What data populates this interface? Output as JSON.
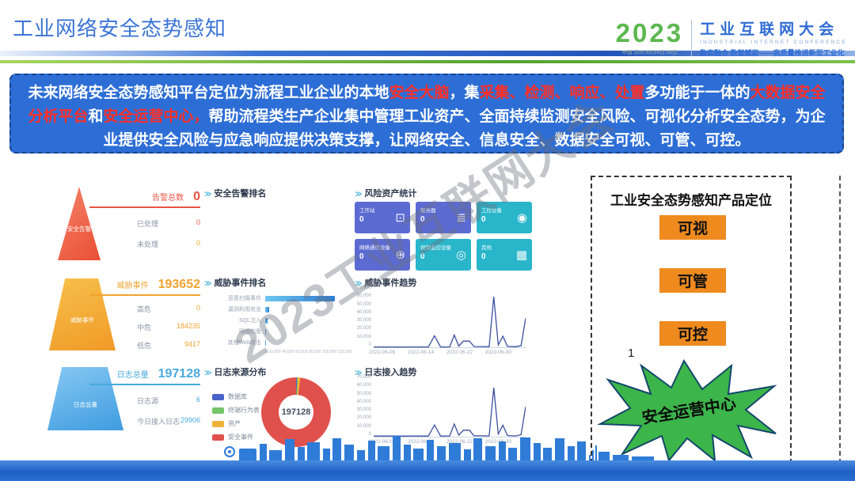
{
  "header": {
    "title": "工业网络安全态势感知",
    "logo": {
      "year": "2023",
      "venue": "中国·苏州 8月14日-16日",
      "name": "工业互联网大会",
      "name_en": "INDUSTRIAL INTERNET CONFERENCE",
      "slogan": "数实融合 数智赋能——高质量推进新型工业化"
    }
  },
  "banner": {
    "segments": [
      {
        "t": "未来网络安全态势感知平台定位为流程工业企业的本地",
        "red": false
      },
      {
        "t": "安全大脑",
        "red": true
      },
      {
        "t": "，集",
        "red": false
      },
      {
        "t": "采集、检测、响应、处置",
        "red": true
      },
      {
        "t": "多功能于一体的",
        "red": false
      },
      {
        "t": "大数据安全分析平台",
        "red": true
      },
      {
        "t": "和",
        "red": false
      },
      {
        "t": "安全运营中心，",
        "red": true
      },
      {
        "t": "帮助流程类生产企业集中管理工业资产、全面持续监测安全风险、可视化分析安全态势，为企业提供安全风险与应急响应提供决策支撑，让网络安全、信息安全、数据安全可视、可管、可控。",
        "red": false
      }
    ]
  },
  "watermark": "2023工业互联网大会",
  "dashboard": {
    "section_marker": "≫",
    "alerts": {
      "pyramid_label": "安全告警",
      "title": "告警总数",
      "total": "0",
      "rows": [
        {
          "label": "已处理",
          "value": "0"
        },
        {
          "label": "未处理",
          "value": "0"
        }
      ]
    },
    "threats": {
      "pyramid_label": "威胁事件",
      "title": "威胁事件",
      "total": "193652",
      "rows": [
        {
          "label": "高危",
          "value": "0"
        },
        {
          "label": "中危",
          "value": "184235"
        },
        {
          "label": "低危",
          "value": "9417"
        }
      ]
    },
    "logs": {
      "pyramid_label": "日志总量",
      "title": "日志总量",
      "total": "197128",
      "rows": [
        {
          "label": "日志源",
          "value": "6"
        },
        {
          "label": "今日接入日志",
          "value": "29906"
        }
      ]
    },
    "sections": {
      "alert_rank": "安全告警排名",
      "threat_rank": "威胁事件排名",
      "log_source": "日志来源分布",
      "risk_assets": "风险资产统计",
      "threat_trend": "威胁事件趋势",
      "log_trend": "日志接入趋势"
    },
    "threat_rank": {
      "type": "bar",
      "categories": [
        "恶意扫描事件",
        "漏洞利用攻击",
        "SQL注入",
        "网络钓鱼",
        "其他Web攻击"
      ],
      "values": [
        95000,
        5200,
        3100,
        1600,
        900
      ],
      "max": 120000,
      "axis_ticks": [
        "0",
        "20,000",
        "40,000",
        "60,000",
        "80,000",
        "100,000",
        "120,000"
      ]
    },
    "log_source": {
      "type": "pie",
      "center_value": "197128",
      "legend": [
        {
          "label": "数据库",
          "color": "#4a63c8",
          "pct": 0.4
        },
        {
          "label": "终端行为表",
          "color": "#74c569",
          "pct": 0.4
        },
        {
          "label": "资产",
          "color": "#f0b13a",
          "pct": 1.2
        },
        {
          "label": "安全事件",
          "color": "#e0504d",
          "pct": 98.0
        }
      ]
    },
    "risk_assets": {
      "tiles": [
        {
          "label": "工作站",
          "value": "0",
          "glyph": "⊡",
          "color": "#5c6bd2",
          "icon": "workstation-icon"
        },
        {
          "label": "服务器",
          "value": "0",
          "glyph": "≣",
          "color": "#5c6bd2",
          "icon": "server-icon"
        },
        {
          "label": "工控设备",
          "value": "0",
          "glyph": "◉",
          "color": "#29b6cb",
          "icon": "plc-device-icon"
        },
        {
          "label": "网络通信设备",
          "value": "0",
          "glyph": "⊕",
          "color": "#5c6bd2",
          "icon": "network-device-icon"
        },
        {
          "label": "视频监控设备",
          "value": "0",
          "glyph": "◎",
          "color": "#29b6cb",
          "icon": "camera-icon"
        },
        {
          "label": "其他",
          "value": "0",
          "glyph": "▦",
          "color": "#29b6cb",
          "icon": "others-icon"
        }
      ]
    },
    "threat_trend": {
      "type": "line",
      "y_ticks": [
        "70,000",
        "60,000",
        "50,000",
        "40,000",
        "30,000",
        "20,000",
        "10,000",
        "0"
      ],
      "x_ticks": [
        "2022-06-06",
        "2022-06-14",
        "2022-06-22",
        "2022-06-30"
      ],
      "max": 70000,
      "points": [
        [
          0,
          400
        ],
        [
          36,
          400
        ],
        [
          40,
          14500
        ],
        [
          44,
          400
        ],
        [
          50,
          500
        ],
        [
          53,
          15500
        ],
        [
          56,
          1500
        ],
        [
          59,
          7800
        ],
        [
          63,
          7800
        ],
        [
          66,
          1000
        ],
        [
          76,
          800
        ],
        [
          79,
          64000
        ],
        [
          82,
          3000
        ],
        [
          85,
          14000
        ],
        [
          88,
          1200
        ],
        [
          93,
          700
        ],
        [
          97,
          2000
        ],
        [
          100,
          37000
        ]
      ]
    },
    "log_trend": {
      "type": "line",
      "y_ticks": [
        "70,000",
        "60,000",
        "50,000",
        "40,000",
        "30,000",
        "20,000",
        "10,000",
        "0"
      ],
      "x_ticks": [
        "2022-06-06",
        "2022-06-14",
        "2022-06-22",
        "2022-06-30"
      ],
      "max": 70000,
      "points": [
        [
          0,
          800
        ],
        [
          36,
          800
        ],
        [
          40,
          14800
        ],
        [
          44,
          800
        ],
        [
          50,
          900
        ],
        [
          53,
          16000
        ],
        [
          56,
          2000
        ],
        [
          59,
          8200
        ],
        [
          63,
          8200
        ],
        [
          66,
          1200
        ],
        [
          76,
          1000
        ],
        [
          79,
          62000
        ],
        [
          82,
          3500
        ],
        [
          85,
          14500
        ],
        [
          88,
          1500
        ],
        [
          93,
          900
        ],
        [
          97,
          2500
        ],
        [
          100,
          38000
        ]
      ]
    }
  },
  "panel": {
    "title": "工业安全态势感知产品定位",
    "buttons": [
      "可视",
      "可管",
      "可控"
    ],
    "note": "1",
    "star_label": "安全运营中心",
    "button_color": "#ee8a1e",
    "star_color": "#3cb54a"
  }
}
